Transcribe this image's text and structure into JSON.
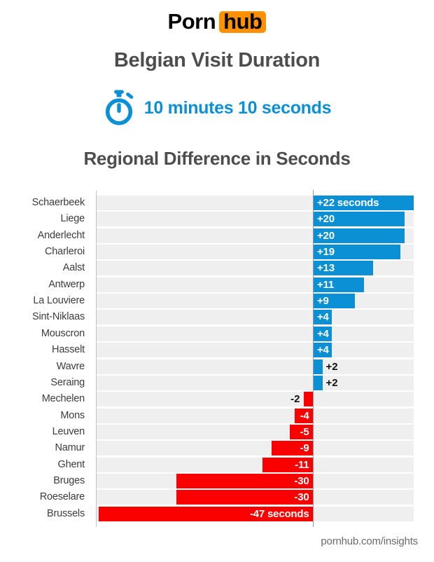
{
  "header": {
    "logo": {
      "text_black": "Porn",
      "text_box": "hub"
    },
    "title": "Belgian Visit Duration",
    "duration_text": "10 minutes 10 seconds",
    "subtitle": "Regional Difference in Seconds"
  },
  "footer": {
    "text": "pornhub.com/insights"
  },
  "colors": {
    "accent_blue": "#0b90d6",
    "negative_red": "#fa0000",
    "logo_orange": "#ff9000",
    "track_gray": "#efefef",
    "title_gray": "#4d4d4d"
  },
  "chart_data": {
    "type": "bar",
    "orientation": "horizontal",
    "title": "Regional Difference in Seconds",
    "unit": "seconds",
    "xlim": [
      -47,
      22
    ],
    "grid": false,
    "positive_color": "#0b90d6",
    "negative_color": "#fa0000",
    "categories": [
      "Schaerbeek",
      "Liege",
      "Anderlecht",
      "Charleroi",
      "Aalst",
      "Antwerp",
      "La Louviere",
      "Sint-Niklaas",
      "Mouscron",
      "Hasselt",
      "Wavre",
      "Seraing",
      "Mechelen",
      "Mons",
      "Leuven",
      "Namur",
      "Ghent",
      "Bruges",
      "Roeselare",
      "Brussels"
    ],
    "values": [
      22,
      20,
      20,
      19,
      13,
      11,
      9,
      4,
      4,
      4,
      2,
      2,
      -2,
      -4,
      -5,
      -9,
      -11,
      -30,
      -30,
      -47
    ],
    "bar_labels": [
      "+22 seconds",
      "+20",
      "+20",
      "+19",
      "+13",
      "+11",
      "+9",
      "+4",
      "+4",
      "+4",
      "+2",
      "+2",
      "-2",
      "-4",
      "-5",
      "-9",
      "-11",
      "-30",
      "-30",
      "-47 seconds"
    ]
  }
}
